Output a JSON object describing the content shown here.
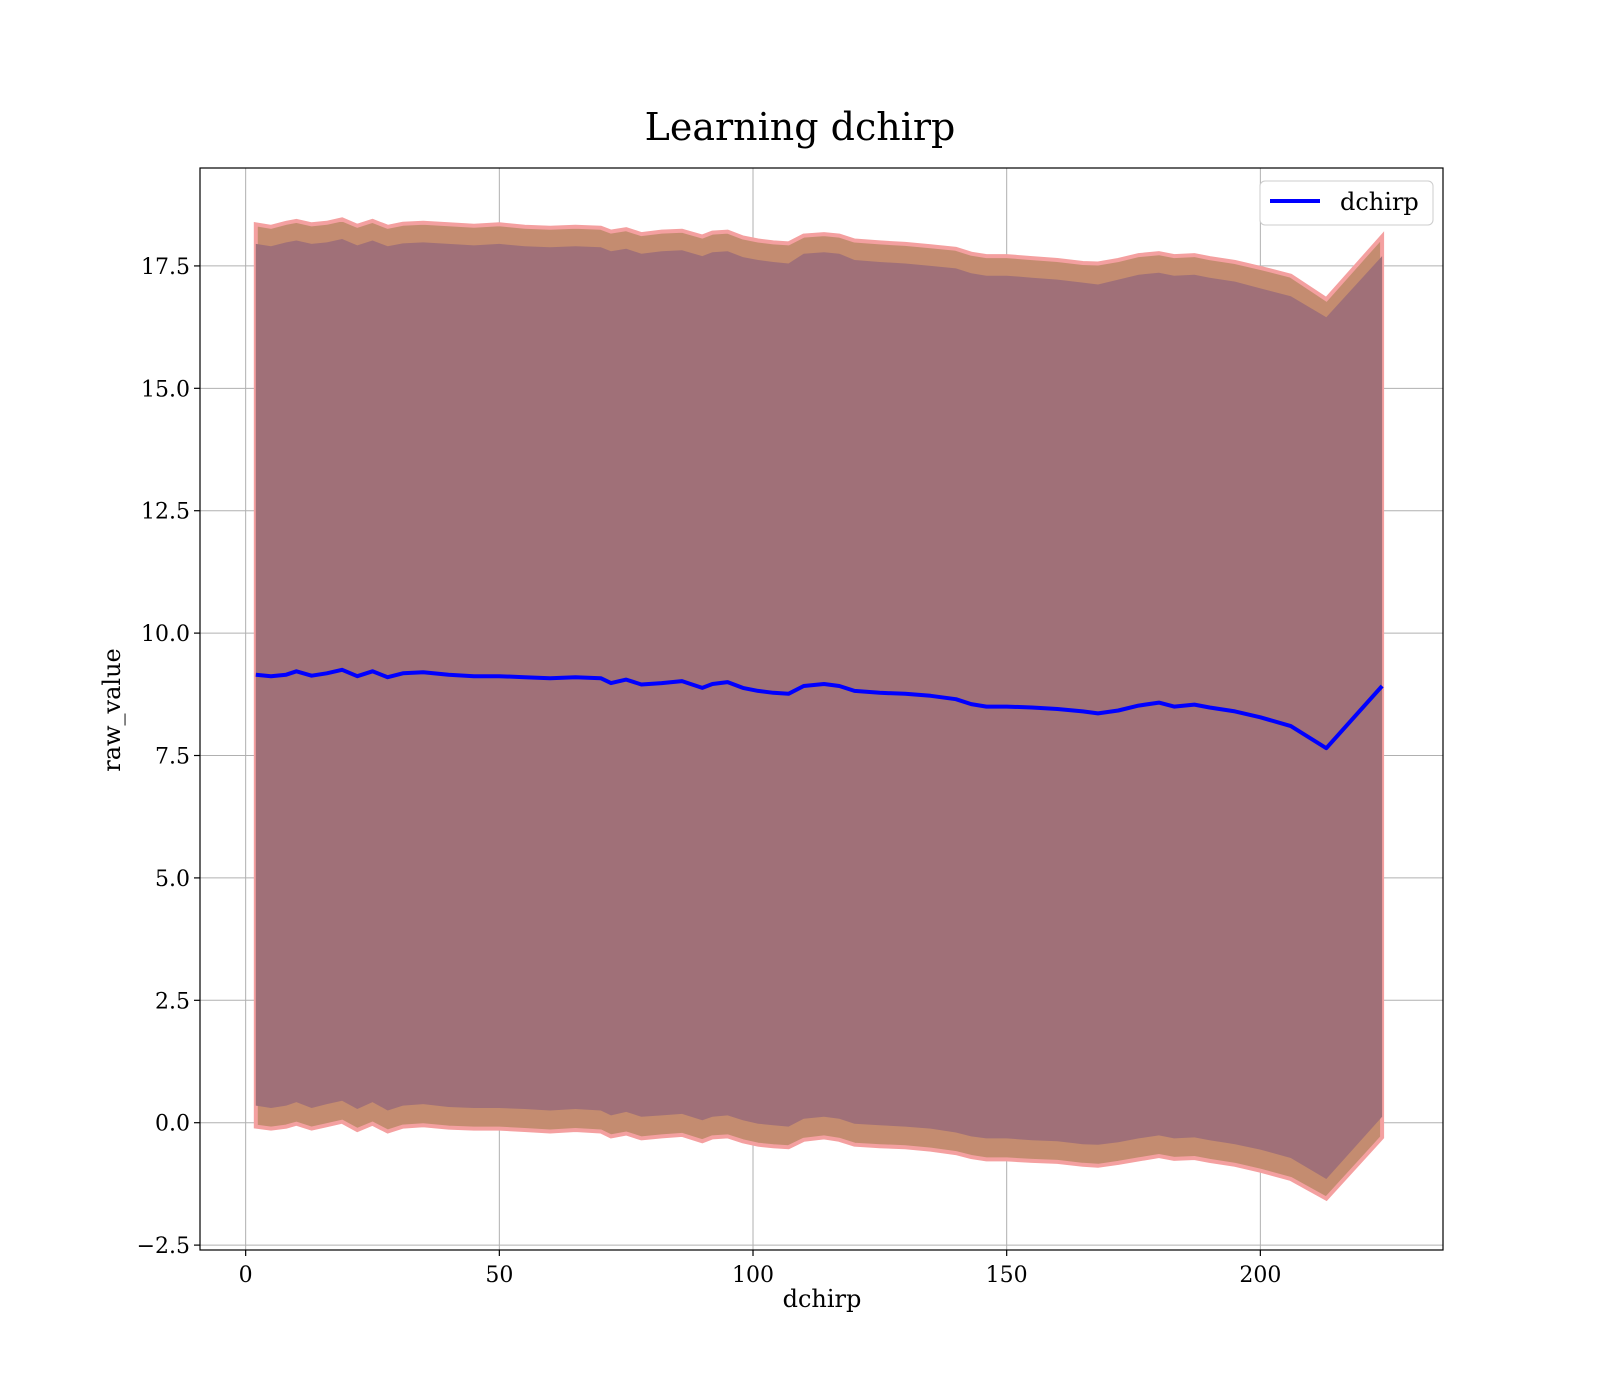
{
  "chart_data": {
    "type": "line",
    "title": "Learning dchirp",
    "xlabel": "dchirp",
    "ylabel": "raw_value",
    "xlim": [
      -9,
      236
    ],
    "ylim": [
      -2.6,
      19.5
    ],
    "xticks": [
      0,
      50,
      100,
      150,
      200
    ],
    "xtick_labels": [
      "0",
      "50",
      "100",
      "150",
      "200"
    ],
    "yticks": [
      -2.5,
      0.0,
      2.5,
      5.0,
      7.5,
      10.0,
      12.5,
      15.0,
      17.5
    ],
    "ytick_labels": [
      "−2.5",
      "0.0",
      "2.5",
      "5.0",
      "7.5",
      "10.0",
      "12.5",
      "15.0",
      "17.5"
    ],
    "grid": true,
    "legend_position": "top-right",
    "colors": {
      "line": "#0000ff",
      "outer_band": "#f4a0a0",
      "middle_band": "#c48c70",
      "inner_band": "#a07078"
    },
    "series": [
      {
        "name": "dchirp",
        "x": [
          2,
          5,
          8,
          10,
          13,
          16,
          19,
          22,
          25,
          28,
          31,
          35,
          40,
          45,
          50,
          55,
          60,
          65,
          70,
          72,
          75,
          78,
          82,
          86,
          90,
          92,
          95,
          98,
          101,
          104,
          107,
          110,
          114,
          117,
          120,
          125,
          130,
          135,
          140,
          143,
          146,
          150,
          155,
          160,
          165,
          168,
          172,
          176,
          180,
          183,
          187,
          190,
          195,
          200,
          206,
          213,
          224
        ],
        "values": [
          9.15,
          9.12,
          9.15,
          9.22,
          9.13,
          9.18,
          9.25,
          9.12,
          9.22,
          9.1,
          9.18,
          9.2,
          9.15,
          9.12,
          9.12,
          9.1,
          9.08,
          9.1,
          9.08,
          8.98,
          9.05,
          8.95,
          8.98,
          9.02,
          8.88,
          8.96,
          9.0,
          8.88,
          8.82,
          8.78,
          8.76,
          8.92,
          8.96,
          8.92,
          8.82,
          8.78,
          8.76,
          8.72,
          8.65,
          8.55,
          8.5,
          8.5,
          8.48,
          8.45,
          8.4,
          8.36,
          8.42,
          8.52,
          8.58,
          8.5,
          8.54,
          8.48,
          8.4,
          8.28,
          8.1,
          7.65,
          8.92
        ],
        "outer_upper": [
          18.35,
          18.3,
          18.38,
          18.42,
          18.35,
          18.38,
          18.45,
          18.32,
          18.42,
          18.3,
          18.36,
          18.38,
          18.35,
          18.32,
          18.35,
          18.3,
          18.28,
          18.3,
          18.28,
          18.2,
          18.25,
          18.15,
          18.2,
          18.22,
          18.1,
          18.18,
          18.2,
          18.08,
          18.02,
          17.98,
          17.96,
          18.12,
          18.15,
          18.12,
          18.02,
          17.98,
          17.95,
          17.9,
          17.85,
          17.75,
          17.7,
          17.7,
          17.66,
          17.62,
          17.56,
          17.55,
          17.62,
          17.72,
          17.76,
          17.7,
          17.72,
          17.66,
          17.58,
          17.46,
          17.3,
          16.82,
          18.1
        ],
        "inner_upper": [
          17.95,
          17.9,
          17.98,
          18.02,
          17.95,
          17.98,
          18.05,
          17.92,
          18.02,
          17.9,
          17.96,
          17.98,
          17.95,
          17.92,
          17.95,
          17.9,
          17.88,
          17.9,
          17.88,
          17.8,
          17.85,
          17.75,
          17.8,
          17.82,
          17.7,
          17.78,
          17.8,
          17.68,
          17.62,
          17.58,
          17.55,
          17.75,
          17.78,
          17.75,
          17.62,
          17.58,
          17.55,
          17.5,
          17.45,
          17.35,
          17.3,
          17.3,
          17.26,
          17.22,
          17.16,
          17.12,
          17.22,
          17.32,
          17.36,
          17.3,
          17.32,
          17.26,
          17.18,
          17.04,
          16.88,
          16.45,
          17.7
        ],
        "inner_lower": [
          0.35,
          0.3,
          0.35,
          0.42,
          0.3,
          0.38,
          0.45,
          0.28,
          0.42,
          0.25,
          0.35,
          0.38,
          0.32,
          0.3,
          0.3,
          0.28,
          0.25,
          0.28,
          0.25,
          0.15,
          0.22,
          0.12,
          0.15,
          0.18,
          0.05,
          0.12,
          0.15,
          0.05,
          -0.02,
          -0.05,
          -0.08,
          0.08,
          0.12,
          0.08,
          -0.02,
          -0.05,
          -0.08,
          -0.12,
          -0.2,
          -0.28,
          -0.32,
          -0.32,
          -0.36,
          -0.38,
          -0.44,
          -0.45,
          -0.4,
          -0.32,
          -0.26,
          -0.32,
          -0.3,
          -0.36,
          -0.44,
          -0.55,
          -0.72,
          -1.15,
          0.12
        ],
        "outer_lower": [
          -0.08,
          -0.12,
          -0.08,
          -0.02,
          -0.12,
          -0.05,
          0.02,
          -0.15,
          -0.02,
          -0.18,
          -0.08,
          -0.05,
          -0.1,
          -0.12,
          -0.12,
          -0.15,
          -0.18,
          -0.15,
          -0.18,
          -0.28,
          -0.22,
          -0.32,
          -0.28,
          -0.25,
          -0.38,
          -0.3,
          -0.28,
          -0.38,
          -0.45,
          -0.48,
          -0.5,
          -0.35,
          -0.3,
          -0.35,
          -0.45,
          -0.48,
          -0.5,
          -0.55,
          -0.62,
          -0.7,
          -0.75,
          -0.75,
          -0.78,
          -0.8,
          -0.86,
          -0.88,
          -0.82,
          -0.75,
          -0.68,
          -0.74,
          -0.72,
          -0.78,
          -0.86,
          -0.98,
          -1.15,
          -1.55,
          -0.3
        ]
      }
    ]
  }
}
